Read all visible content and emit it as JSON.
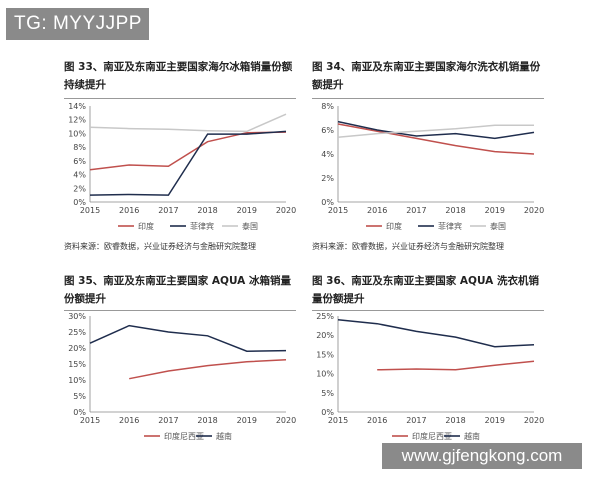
{
  "banner": "TG: MYYJJPP",
  "watermark": "www.gjfengkong.com",
  "source_1": "资料来源：欧睿数据，兴业证券经济与金融研究院整理",
  "source_2": "资料来源：欧睿数据，兴业证券经济与金融研究院整理",
  "chart_data": [
    {
      "type": "line",
      "title": "图 33、南亚及东南亚主要国家海尔冰箱销量份额持续提升",
      "x": [
        "2015",
        "2016",
        "2017",
        "2018",
        "2019",
        "2020"
      ],
      "y_ticks": [
        "0%",
        "2%",
        "4%",
        "6%",
        "8%",
        "10%",
        "12%",
        "14%"
      ],
      "ylim": [
        0,
        14
      ],
      "legend": "bottom",
      "series": [
        {
          "name": "印度",
          "color": "#c0504d",
          "values": [
            4.7,
            5.4,
            5.2,
            8.8,
            10.1,
            10.2
          ]
        },
        {
          "name": "菲律宾",
          "color": "#1f2d4d",
          "values": [
            1.0,
            1.1,
            1.0,
            9.9,
            9.9,
            10.3
          ]
        },
        {
          "name": "泰国",
          "color": "#c8c8c8",
          "values": [
            10.9,
            10.7,
            10.6,
            10.4,
            10.3,
            12.8
          ]
        }
      ]
    },
    {
      "type": "line",
      "title": "图 34、南亚及东南亚主要国家海尔洗衣机销量份额提升",
      "x": [
        "2015",
        "2016",
        "2017",
        "2018",
        "2019",
        "2020"
      ],
      "y_ticks": [
        "0%",
        "2%",
        "4%",
        "6%",
        "8%"
      ],
      "ylim": [
        0,
        8
      ],
      "legend": "bottom",
      "series": [
        {
          "name": "印度",
          "color": "#c0504d",
          "values": [
            6.5,
            5.9,
            5.3,
            4.7,
            4.2,
            4.0
          ]
        },
        {
          "name": "菲律宾",
          "color": "#1f2d4d",
          "values": [
            6.7,
            6.0,
            5.5,
            5.7,
            5.3,
            5.8
          ]
        },
        {
          "name": "泰国",
          "color": "#c8c8c8",
          "values": [
            5.4,
            5.7,
            5.9,
            6.1,
            6.4,
            6.4
          ]
        }
      ]
    },
    {
      "type": "line",
      "title": "图 35、南亚及东南亚主要国家 AQUA 冰箱销量份额提升",
      "x": [
        "2015",
        "2016",
        "2017",
        "2018",
        "2019",
        "2020"
      ],
      "y_ticks": [
        "0%",
        "5%",
        "10%",
        "15%",
        "20%",
        "25%",
        "30%"
      ],
      "ylim": [
        0,
        30
      ],
      "legend": "bottom",
      "series": [
        {
          "name": "印度尼西亚",
          "color": "#c0504d",
          "values": [
            null,
            10.4,
            12.8,
            14.5,
            15.7,
            16.3
          ]
        },
        {
          "name": "越南",
          "color": "#1f2d4d",
          "values": [
            21.5,
            27.0,
            25.0,
            23.8,
            19.0,
            19.2
          ]
        }
      ]
    },
    {
      "type": "line",
      "title": "图 36、南亚及东南亚主要国家 AQUA 洗衣机销量份额提升",
      "x": [
        "2015",
        "2016",
        "2017",
        "2018",
        "2019",
        "2020"
      ],
      "y_ticks": [
        "0%",
        "5%",
        "10%",
        "15%",
        "20%",
        "25%"
      ],
      "ylim": [
        0,
        25
      ],
      "legend": "bottom",
      "series": [
        {
          "name": "印度尼西亚",
          "color": "#c0504d",
          "values": [
            null,
            11.0,
            11.2,
            11.0,
            12.2,
            13.2
          ]
        },
        {
          "name": "越南",
          "color": "#1f2d4d",
          "values": [
            24.0,
            23.0,
            21.0,
            19.5,
            17.0,
            17.5
          ]
        }
      ]
    }
  ]
}
